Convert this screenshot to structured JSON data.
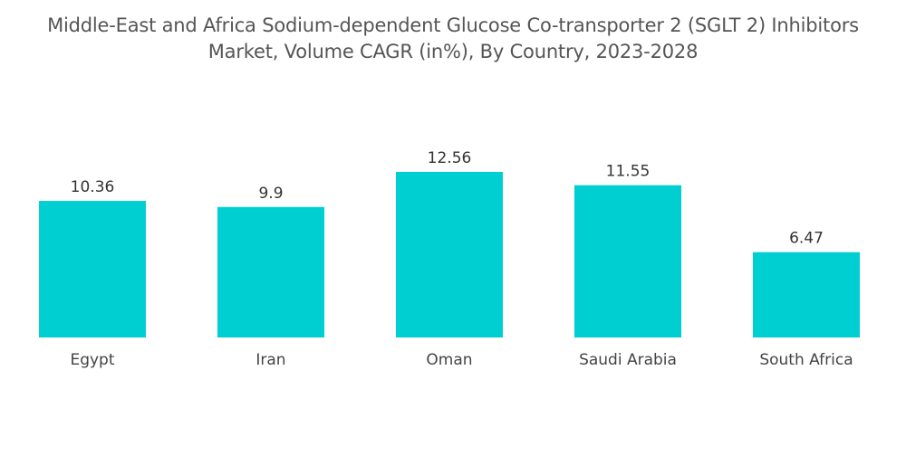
{
  "title": {
    "line1": "Middle-East and Africa Sodium-dependent Glucose Co-transporter 2 (SGLT 2) Inhibitors",
    "line2": "Market, Volume CAGR (in%), By Country, 2023-2028"
  },
  "chart_data": {
    "type": "bar",
    "categories": [
      "Egypt",
      "Iran",
      "Oman",
      "Saudi Arabia",
      "South Africa"
    ],
    "values": [
      10.36,
      9.9,
      12.56,
      11.55,
      6.47
    ],
    "value_labels": [
      "10.36",
      "9.9",
      "12.56",
      "11.55",
      "6.47"
    ],
    "bar_color": "#00cfd1",
    "grid": false,
    "legend": "none",
    "ylim": [
      0,
      12.56
    ]
  }
}
